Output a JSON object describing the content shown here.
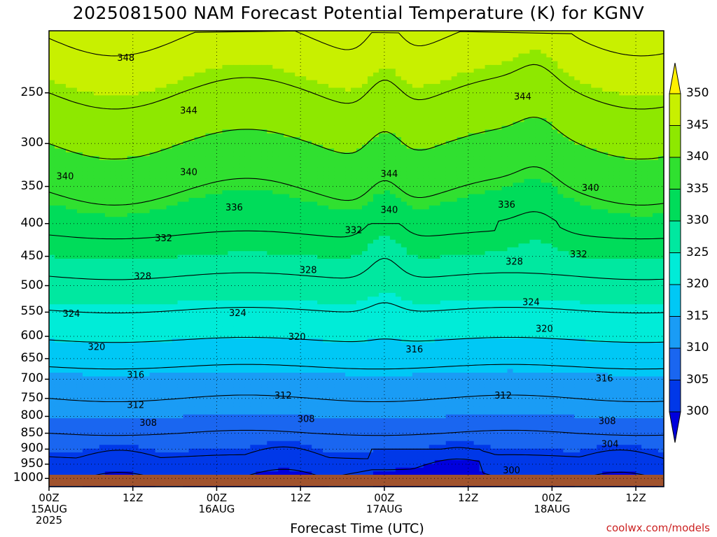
{
  "title": "2025081500 NAM Forecast Potential Temperature (K) for KGNV",
  "credit": "coolwx.com/models",
  "chart_data": {
    "type": "contour",
    "title": "2025081500 NAM Forecast Potential Temperature (K) for KGNV",
    "xlabel": "Forecast Time (UTC)",
    "ylabel": "",
    "y_scale": "log-pressure, inverted",
    "ylim": [
      1030,
      200
    ],
    "y_ticks": [
      250,
      300,
      350,
      400,
      450,
      500,
      550,
      600,
      650,
      700,
      750,
      800,
      850,
      900,
      950,
      1000
    ],
    "y_tick_labels": [
      "250",
      "300",
      "350",
      "400",
      "450",
      "500",
      "550",
      "600",
      "650",
      "700",
      "750",
      "800",
      "850",
      "900",
      "950",
      "1000"
    ],
    "x_hours": [
      0,
      12,
      24,
      36,
      48,
      60,
      72,
      84
    ],
    "x_tick_labels": [
      {
        "top": "00Z",
        "bottom": "15AUG",
        "extra": "2025"
      },
      {
        "top": "12Z",
        "bottom": ""
      },
      {
        "top": "00Z",
        "bottom": "16AUG"
      },
      {
        "top": "12Z",
        "bottom": ""
      },
      {
        "top": "00Z",
        "bottom": "17AUG"
      },
      {
        "top": "12Z",
        "bottom": ""
      },
      {
        "top": "00Z",
        "bottom": "18AUG"
      },
      {
        "top": "12Z",
        "bottom": ""
      }
    ],
    "grid": true,
    "colorbar": {
      "levels": [
        300,
        305,
        310,
        315,
        320,
        325,
        330,
        335,
        340,
        345,
        350
      ],
      "labels": [
        "300",
        "305",
        "310",
        "315",
        "320",
        "325",
        "330",
        "335",
        "340",
        "345",
        "350"
      ],
      "colors": [
        "#0000dd",
        "#0038e8",
        "#1a66f0",
        "#1a9cf5",
        "#00c8f5",
        "#00ecd8",
        "#00e8a0",
        "#00dc5a",
        "#30e030",
        "#8ee800",
        "#c8f000",
        "#fff000"
      ]
    },
    "contour_interval_K": 4,
    "labeled_contours": [
      {
        "value": 348,
        "hour": 11,
        "pressure": 220
      },
      {
        "value": 344,
        "hour": 20,
        "pressure": 266
      },
      {
        "value": 344,
        "hour": 48.7,
        "pressure": 334
      },
      {
        "value": 344,
        "hour": 67.8,
        "pressure": 253
      },
      {
        "value": 340,
        "hour": 2.3,
        "pressure": 337
      },
      {
        "value": 340,
        "hour": 20,
        "pressure": 332
      },
      {
        "value": 340,
        "hour": 48.7,
        "pressure": 380
      },
      {
        "value": 340,
        "hour": 77.5,
        "pressure": 351
      },
      {
        "value": 336,
        "hour": 26.5,
        "pressure": 377
      },
      {
        "value": 336,
        "hour": 65.5,
        "pressure": 373
      },
      {
        "value": 332,
        "hour": 16.4,
        "pressure": 421
      },
      {
        "value": 332,
        "hour": 43.6,
        "pressure": 409
      },
      {
        "value": 332,
        "hour": 75.8,
        "pressure": 446
      },
      {
        "value": 328,
        "hour": 13.4,
        "pressure": 483
      },
      {
        "value": 328,
        "hour": 37.1,
        "pressure": 472
      },
      {
        "value": 328,
        "hour": 66.6,
        "pressure": 458
      },
      {
        "value": 324,
        "hour": 3.2,
        "pressure": 552
      },
      {
        "value": 324,
        "hour": 27,
        "pressure": 551
      },
      {
        "value": 324,
        "hour": 69,
        "pressure": 530
      },
      {
        "value": 320,
        "hour": 6.8,
        "pressure": 622
      },
      {
        "value": 320,
        "hour": 35.5,
        "pressure": 600
      },
      {
        "value": 320,
        "hour": 70.9,
        "pressure": 583
      },
      {
        "value": 316,
        "hour": 12.4,
        "pressure": 688
      },
      {
        "value": 316,
        "hour": 52.3,
        "pressure": 628
      },
      {
        "value": 316,
        "hour": 79.5,
        "pressure": 697
      },
      {
        "value": 312,
        "hour": 12.4,
        "pressure": 767
      },
      {
        "value": 312,
        "hour": 33.5,
        "pressure": 741
      },
      {
        "value": 312,
        "hour": 65,
        "pressure": 741
      },
      {
        "value": 308,
        "hour": 14.2,
        "pressure": 817
      },
      {
        "value": 308,
        "hour": 36.8,
        "pressure": 806
      },
      {
        "value": 308,
        "hour": 79.9,
        "pressure": 812
      },
      {
        "value": 304,
        "hour": 80.3,
        "pressure": 882
      },
      {
        "value": 300,
        "hour": 66.2,
        "pressure": 970
      }
    ],
    "annotations": [
      "348",
      "344",
      "340",
      "336",
      "332",
      "328",
      "324",
      "320",
      "316",
      "312",
      "308",
      "304",
      "300"
    ]
  }
}
